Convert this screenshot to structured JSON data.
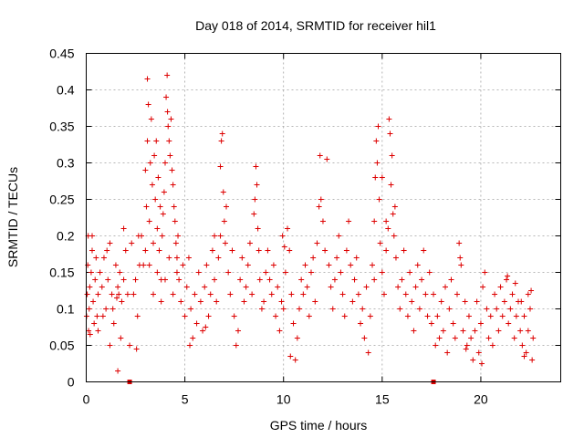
{
  "chart_data": {
    "type": "scatter",
    "title": "Day 018 of 2014, SRMTID for receiver hil1",
    "xlabel": "GPS time / hours",
    "ylabel": "SRMTID / TECUs",
    "xlim": [
      0,
      24.05
    ],
    "ylim": [
      0,
      0.45
    ],
    "xticks": [
      0,
      5,
      10,
      15,
      20
    ],
    "xtick_labels": [
      "0",
      "5",
      "10",
      "15",
      "20"
    ],
    "yticks": [
      0,
      0.05,
      0.1,
      0.15,
      0.2,
      0.25,
      0.3,
      0.35,
      0.4,
      0.45
    ],
    "ytick_labels": [
      "0",
      "0.05",
      "0.1",
      "0.15",
      "0.2",
      "0.25",
      "0.3",
      "0.35",
      "0.4",
      "0.45"
    ],
    "grid": true,
    "series_color": "#dd0000",
    "x_markers_on_axis": [
      2.2,
      17.6
    ],
    "series": [
      {
        "name": "SRMTID",
        "points": [
          [
            0.02,
            0.09
          ],
          [
            0.05,
            0.12
          ],
          [
            0.08,
            0.16
          ],
          [
            0.1,
            0.2
          ],
          [
            0.12,
            0.07
          ],
          [
            0.15,
            0.1
          ],
          [
            0.18,
            0.13
          ],
          [
            0.2,
            0.065
          ],
          [
            0.25,
            0.15
          ],
          [
            0.3,
            0.18
          ],
          [
            0.35,
            0.11
          ],
          [
            0.4,
            0.08
          ],
          [
            0.45,
            0.14
          ],
          [
            0.5,
            0.17
          ],
          [
            0.55,
            0.09
          ],
          [
            0.6,
            0.12
          ],
          [
            0.7,
            0.15
          ],
          [
            0.8,
            0.13
          ],
          [
            0.9,
            0.17
          ],
          [
            1.0,
            0.1
          ],
          [
            1.1,
            0.14
          ],
          [
            1.2,
            0.19
          ],
          [
            1.3,
            0.12
          ],
          [
            1.4,
            0.08
          ],
          [
            1.5,
            0.16
          ],
          [
            1.6,
            0.13
          ],
          [
            1.7,
            0.15
          ],
          [
            1.8,
            0.11
          ],
          [
            1.9,
            0.14
          ],
          [
            2.0,
            0.18
          ],
          [
            2.1,
            0.12
          ],
          [
            2.2,
            0.05
          ],
          [
            0.3,
            0.2
          ],
          [
            0.6,
            0.07
          ],
          [
            1.05,
            0.18
          ],
          [
            1.35,
            0.1
          ],
          [
            1.75,
            0.06
          ],
          [
            0.85,
            0.09
          ],
          [
            1.55,
            0.115
          ],
          [
            1.65,
            0.12
          ],
          [
            1.6,
            0.015
          ],
          [
            1.2,
            0.05
          ],
          [
            2.3,
            0.19
          ],
          [
            2.4,
            0.12
          ],
          [
            2.5,
            0.14
          ],
          [
            2.6,
            0.09
          ],
          [
            2.7,
            0.16
          ],
          [
            2.8,
            0.2
          ],
          [
            1.9,
            0.21
          ],
          [
            2.55,
            0.045
          ],
          [
            2.65,
            0.2
          ],
          [
            3.0,
            0.29
          ],
          [
            3.05,
            0.24
          ],
          [
            3.1,
            0.33
          ],
          [
            3.1,
            0.415
          ],
          [
            3.15,
            0.38
          ],
          [
            3.2,
            0.22
          ],
          [
            3.25,
            0.3
          ],
          [
            3.3,
            0.36
          ],
          [
            3.35,
            0.27
          ],
          [
            3.4,
            0.19
          ],
          [
            3.45,
            0.31
          ],
          [
            3.5,
            0.25
          ],
          [
            3.55,
            0.33
          ],
          [
            3.6,
            0.21
          ],
          [
            3.65,
            0.28
          ],
          [
            3.7,
            0.18
          ],
          [
            3.75,
            0.24
          ],
          [
            3.8,
            0.14
          ],
          [
            3.85,
            0.2
          ],
          [
            3.9,
            0.23
          ],
          [
            3.95,
            0.26
          ],
          [
            4.0,
            0.3
          ],
          [
            4.05,
            0.39
          ],
          [
            4.1,
            0.42
          ],
          [
            4.12,
            0.37
          ],
          [
            4.15,
            0.35
          ],
          [
            4.2,
            0.33
          ],
          [
            4.25,
            0.31
          ],
          [
            4.3,
            0.36
          ],
          [
            4.35,
            0.29
          ],
          [
            4.4,
            0.27
          ],
          [
            4.45,
            0.24
          ],
          [
            4.5,
            0.22
          ],
          [
            4.55,
            0.19
          ],
          [
            4.6,
            0.17
          ],
          [
            4.65,
            0.2
          ],
          [
            3.2,
            0.16
          ],
          [
            3.4,
            0.12
          ],
          [
            3.6,
            0.15
          ],
          [
            3.8,
            0.11
          ],
          [
            4.0,
            0.14
          ],
          [
            4.2,
            0.17
          ],
          [
            4.4,
            0.12
          ],
          [
            4.6,
            0.15
          ],
          [
            2.9,
            0.16
          ],
          [
            3.0,
            0.18
          ],
          [
            4.7,
            0.14
          ],
          [
            4.8,
            0.11
          ],
          [
            4.9,
            0.16
          ],
          [
            5.0,
            0.09
          ],
          [
            5.1,
            0.13
          ],
          [
            5.2,
            0.17
          ],
          [
            5.3,
            0.1
          ],
          [
            5.4,
            0.06
          ],
          [
            5.5,
            0.12
          ],
          [
            5.6,
            0.08
          ],
          [
            5.7,
            0.15
          ],
          [
            5.8,
            0.11
          ],
          [
            5.9,
            0.07
          ],
          [
            6.0,
            0.13
          ],
          [
            6.1,
            0.16
          ],
          [
            6.2,
            0.09
          ],
          [
            6.3,
            0.12
          ],
          [
            6.4,
            0.18
          ],
          [
            6.5,
            0.14
          ],
          [
            6.6,
            0.11
          ],
          [
            6.7,
            0.17
          ],
          [
            6.8,
            0.2
          ],
          [
            6.85,
            0.33
          ],
          [
            6.9,
            0.34
          ],
          [
            6.95,
            0.26
          ],
          [
            7.0,
            0.22
          ],
          [
            7.05,
            0.19
          ],
          [
            7.1,
            0.24
          ],
          [
            7.2,
            0.15
          ],
          [
            7.3,
            0.12
          ],
          [
            7.4,
            0.18
          ],
          [
            7.5,
            0.09
          ],
          [
            7.6,
            0.05
          ],
          [
            7.7,
            0.07
          ],
          [
            7.8,
            0.14
          ],
          [
            7.9,
            0.17
          ],
          [
            8.0,
            0.11
          ],
          [
            8.1,
            0.13
          ],
          [
            8.2,
            0.16
          ],
          [
            8.3,
            0.19
          ],
          [
            8.4,
            0.12
          ],
          [
            8.5,
            0.23
          ],
          [
            8.55,
            0.25
          ],
          [
            8.6,
            0.295
          ],
          [
            8.65,
            0.27
          ],
          [
            8.7,
            0.21
          ],
          [
            8.75,
            0.18
          ],
          [
            8.8,
            0.14
          ],
          [
            8.9,
            0.1
          ],
          [
            5.25,
            0.05
          ],
          [
            6.05,
            0.075
          ],
          [
            6.5,
            0.2
          ],
          [
            6.8,
            0.295
          ],
          [
            9.0,
            0.11
          ],
          [
            9.1,
            0.15
          ],
          [
            9.2,
            0.18
          ],
          [
            9.3,
            0.14
          ],
          [
            9.4,
            0.12
          ],
          [
            9.5,
            0.16
          ],
          [
            9.6,
            0.09
          ],
          [
            9.7,
            0.13
          ],
          [
            9.8,
            0.07
          ],
          [
            9.9,
            0.11
          ],
          [
            10.0,
            0.1
          ],
          [
            10.1,
            0.15
          ],
          [
            10.2,
            0.21
          ],
          [
            10.3,
            0.18
          ],
          [
            10.4,
            0.12
          ],
          [
            10.5,
            0.08
          ],
          [
            10.6,
            0.03
          ],
          [
            10.7,
            0.06
          ],
          [
            10.8,
            0.1
          ],
          [
            10.9,
            0.14
          ],
          [
            11.0,
            0.12
          ],
          [
            11.1,
            0.16
          ],
          [
            11.2,
            0.13
          ],
          [
            11.3,
            0.09
          ],
          [
            11.4,
            0.15
          ],
          [
            11.5,
            0.17
          ],
          [
            11.6,
            0.11
          ],
          [
            11.7,
            0.19
          ],
          [
            11.8,
            0.24
          ],
          [
            11.85,
            0.31
          ],
          [
            11.9,
            0.25
          ],
          [
            12.0,
            0.22
          ],
          [
            12.1,
            0.18
          ],
          [
            12.2,
            0.305
          ],
          [
            12.3,
            0.16
          ],
          [
            12.4,
            0.13
          ],
          [
            12.5,
            0.1
          ],
          [
            12.6,
            0.14
          ],
          [
            12.7,
            0.17
          ],
          [
            12.8,
            0.2
          ],
          [
            12.9,
            0.15
          ],
          [
            13.0,
            0.12
          ],
          [
            13.1,
            0.09
          ],
          [
            13.2,
            0.18
          ],
          [
            13.3,
            0.22
          ],
          [
            13.4,
            0.16
          ],
          [
            13.5,
            0.11
          ],
          [
            13.6,
            0.14
          ],
          [
            13.7,
            0.17
          ],
          [
            13.8,
            0.12
          ],
          [
            13.9,
            0.08
          ],
          [
            14.0,
            0.1
          ],
          [
            14.1,
            0.06
          ],
          [
            14.2,
            0.13
          ],
          [
            14.3,
            0.04
          ],
          [
            14.4,
            0.09
          ],
          [
            10.05,
            0.185
          ],
          [
            10.35,
            0.035
          ],
          [
            9.95,
            0.2
          ],
          [
            14.5,
            0.16
          ],
          [
            14.6,
            0.22
          ],
          [
            14.65,
            0.28
          ],
          [
            14.7,
            0.33
          ],
          [
            14.75,
            0.3
          ],
          [
            14.8,
            0.35
          ],
          [
            14.85,
            0.25
          ],
          [
            14.9,
            0.19
          ],
          [
            15.0,
            0.15
          ],
          [
            15.1,
            0.12
          ],
          [
            15.2,
            0.18
          ],
          [
            15.3,
            0.21
          ],
          [
            15.35,
            0.36
          ],
          [
            15.4,
            0.34
          ],
          [
            15.45,
            0.27
          ],
          [
            15.5,
            0.31
          ],
          [
            15.55,
            0.23
          ],
          [
            15.6,
            0.2
          ],
          [
            15.65,
            0.24
          ],
          [
            15.7,
            0.17
          ],
          [
            15.8,
            0.13
          ],
          [
            15.9,
            0.1
          ],
          [
            16.0,
            0.14
          ],
          [
            16.1,
            0.18
          ],
          [
            16.2,
            0.12
          ],
          [
            16.3,
            0.09
          ],
          [
            16.4,
            0.15
          ],
          [
            16.5,
            0.11
          ],
          [
            16.6,
            0.07
          ],
          [
            16.7,
            0.13
          ],
          [
            16.8,
            0.16
          ],
          [
            16.9,
            0.1
          ],
          [
            17.0,
            0.14
          ],
          [
            17.1,
            0.18
          ],
          [
            17.2,
            0.12
          ],
          [
            17.3,
            0.09
          ],
          [
            17.4,
            0.15
          ],
          [
            15.0,
            0.28
          ],
          [
            15.2,
            0.22
          ],
          [
            14.6,
            0.14
          ],
          [
            17.5,
            0.08
          ],
          [
            17.6,
            0.12
          ],
          [
            17.7,
            0.05
          ],
          [
            17.8,
            0.09
          ],
          [
            17.9,
            0.06
          ],
          [
            18.0,
            0.11
          ],
          [
            18.1,
            0.07
          ],
          [
            18.2,
            0.13
          ],
          [
            18.3,
            0.04
          ],
          [
            18.4,
            0.1
          ],
          [
            18.5,
            0.14
          ],
          [
            18.6,
            0.08
          ],
          [
            18.7,
            0.06
          ],
          [
            18.8,
            0.12
          ],
          [
            18.9,
            0.19
          ],
          [
            19.0,
            0.16
          ],
          [
            19.1,
            0.07
          ],
          [
            19.2,
            0.11
          ],
          [
            19.3,
            0.05
          ],
          [
            19.4,
            0.09
          ],
          [
            19.5,
            0.06
          ],
          [
            19.6,
            0.03
          ],
          [
            19.7,
            0.07
          ],
          [
            19.8,
            0.11
          ],
          [
            19.9,
            0.04
          ],
          [
            20.0,
            0.08
          ],
          [
            20.1,
            0.13
          ],
          [
            20.2,
            0.15
          ],
          [
            20.3,
            0.1
          ],
          [
            20.4,
            0.06
          ],
          [
            20.5,
            0.09
          ],
          [
            20.6,
            0.05
          ],
          [
            20.7,
            0.12
          ],
          [
            20.8,
            0.1
          ],
          [
            20.9,
            0.07
          ],
          [
            21.0,
            0.13
          ],
          [
            21.1,
            0.09
          ],
          [
            21.2,
            0.11
          ],
          [
            21.3,
            0.14
          ],
          [
            21.4,
            0.08
          ],
          [
            21.5,
            0.1
          ],
          [
            21.6,
            0.12
          ],
          [
            21.7,
            0.06
          ],
          [
            21.8,
            0.09
          ],
          [
            21.9,
            0.11
          ],
          [
            22.0,
            0.07
          ],
          [
            22.1,
            0.05
          ],
          [
            22.2,
            0.09
          ],
          [
            22.3,
            0.04
          ],
          [
            22.4,
            0.07
          ],
          [
            22.5,
            0.1
          ],
          [
            22.55,
            0.125
          ],
          [
            22.6,
            0.03
          ],
          [
            22.65,
            0.06
          ],
          [
            22.4,
            0.12
          ],
          [
            22.2,
            0.035
          ],
          [
            20.05,
            0.025
          ],
          [
            19.25,
            0.045
          ],
          [
            18.95,
            0.17
          ],
          [
            21.35,
            0.145
          ],
          [
            21.75,
            0.135
          ],
          [
            22.05,
            0.11
          ]
        ]
      }
    ]
  }
}
